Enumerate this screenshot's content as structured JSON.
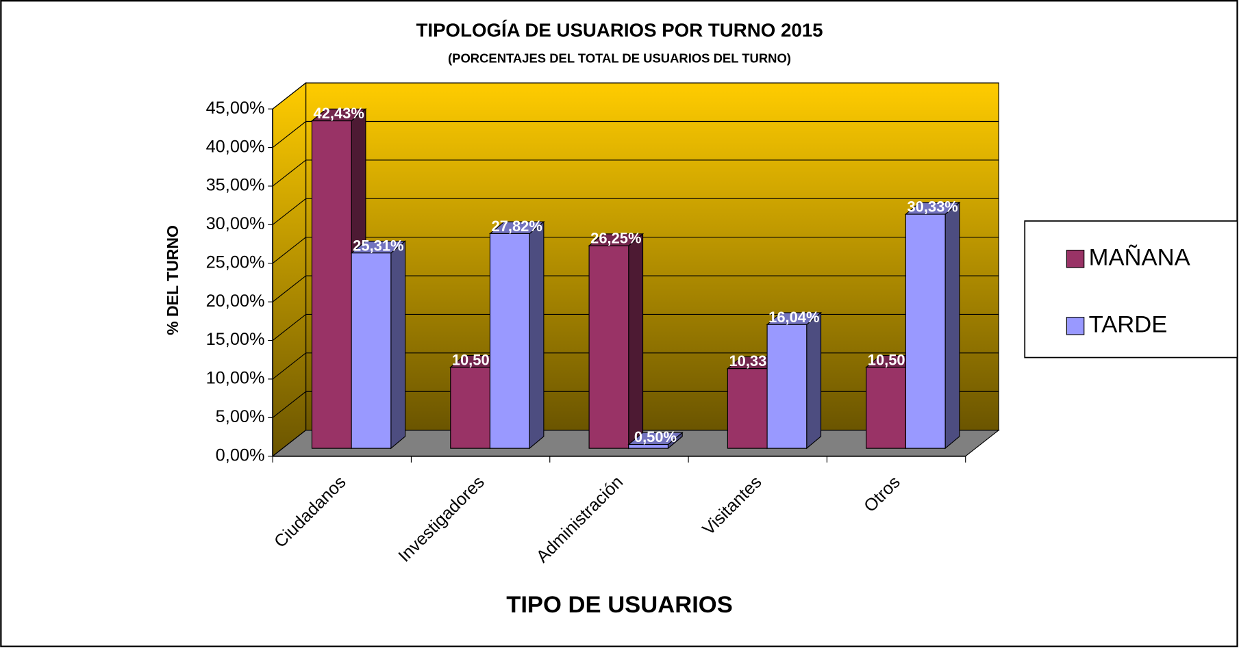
{
  "chart_data": {
    "type": "bar3d",
    "title": "TIPOLOGÍA DE USUARIOS POR TURNO 2015",
    "subtitle": "(PORCENTAJES DEL TOTAL DE USUARIOS DEL TURNO)",
    "x_label": "TIPO DE USUARIOS",
    "y_label": "% DEL TURNO",
    "categories": [
      "Ciudadanos",
      "Investigadores",
      "Administración",
      "Visitantes",
      "Otros"
    ],
    "series": [
      {
        "name": "MAÑANA",
        "color": "#993366",
        "values": [
          42.43,
          10.5,
          26.25,
          10.33,
          10.5
        ],
        "value_labels": [
          "42,43%",
          "10,50%",
          "26,25%",
          "10,33%",
          "10,50%"
        ]
      },
      {
        "name": "TARDE",
        "color": "#9999ff",
        "values": [
          25.31,
          27.82,
          0.5,
          16.04,
          30.33
        ],
        "value_labels": [
          "25,31%",
          "27,82%",
          "0,50%",
          "16,04%",
          "30,33%"
        ]
      }
    ],
    "ylim": [
      0,
      45
    ],
    "yticks": [
      {
        "value": 0,
        "label": "0,00%"
      },
      {
        "value": 5,
        "label": "5,00%"
      },
      {
        "value": 10,
        "label": "10,00%"
      },
      {
        "value": 15,
        "label": "15,00%"
      },
      {
        "value": 20,
        "label": "20,00%"
      },
      {
        "value": 25,
        "label": "25,00%"
      },
      {
        "value": 30,
        "label": "30,00%"
      },
      {
        "value": 35,
        "label": "35,00%"
      },
      {
        "value": 40,
        "label": "40,00%"
      },
      {
        "value": 45,
        "label": "45,00%"
      }
    ],
    "grid": true,
    "legend": "right"
  }
}
